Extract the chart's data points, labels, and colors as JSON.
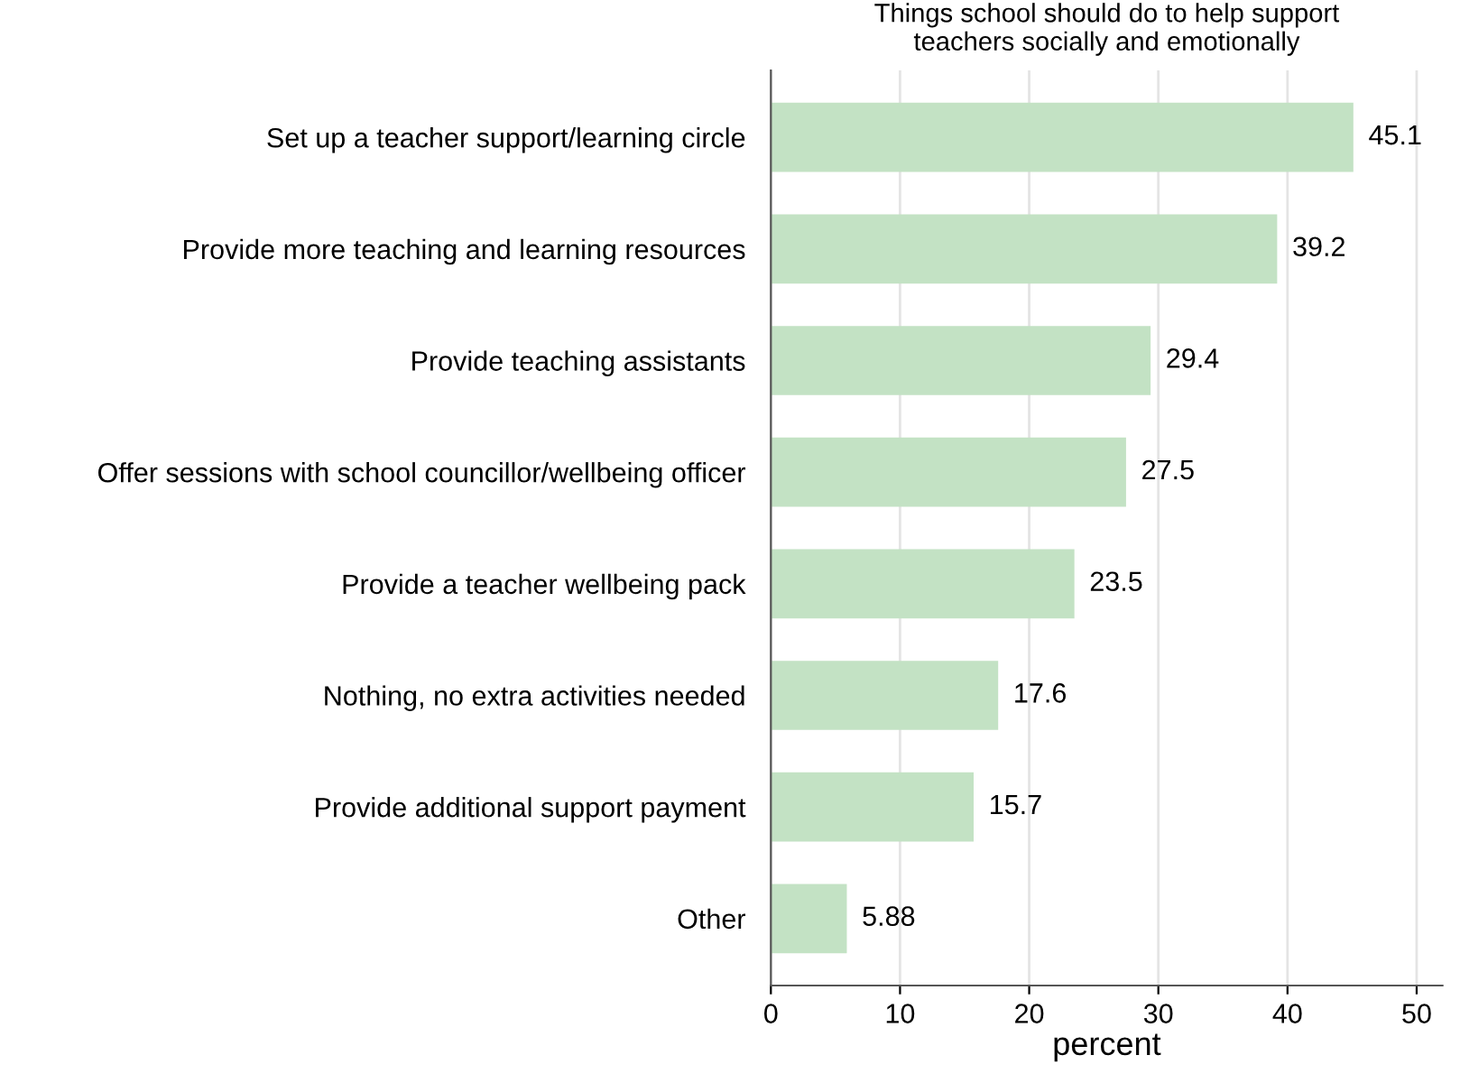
{
  "chart_data": {
    "type": "bar",
    "orientation": "horizontal",
    "title": "Things school should do to help support\nteachers socially and emotionally",
    "xlabel": "percent",
    "categories": [
      "Set up a teacher support/learning circle",
      "Provide more teaching and learning resources",
      "Provide teaching assistants",
      "Offer sessions with school councillor/wellbeing officer",
      "Provide a teacher wellbeing pack",
      "Nothing, no extra activities needed",
      "Provide additional support payment",
      "Other"
    ],
    "values": [
      45.1,
      39.2,
      29.4,
      27.5,
      23.5,
      17.6,
      15.7,
      5.88
    ],
    "color": "#c3e2c4",
    "xlim": [
      0,
      52
    ],
    "xticks": [
      0,
      10,
      20,
      30,
      40,
      50
    ],
    "grid": "x",
    "data_labels": true
  }
}
